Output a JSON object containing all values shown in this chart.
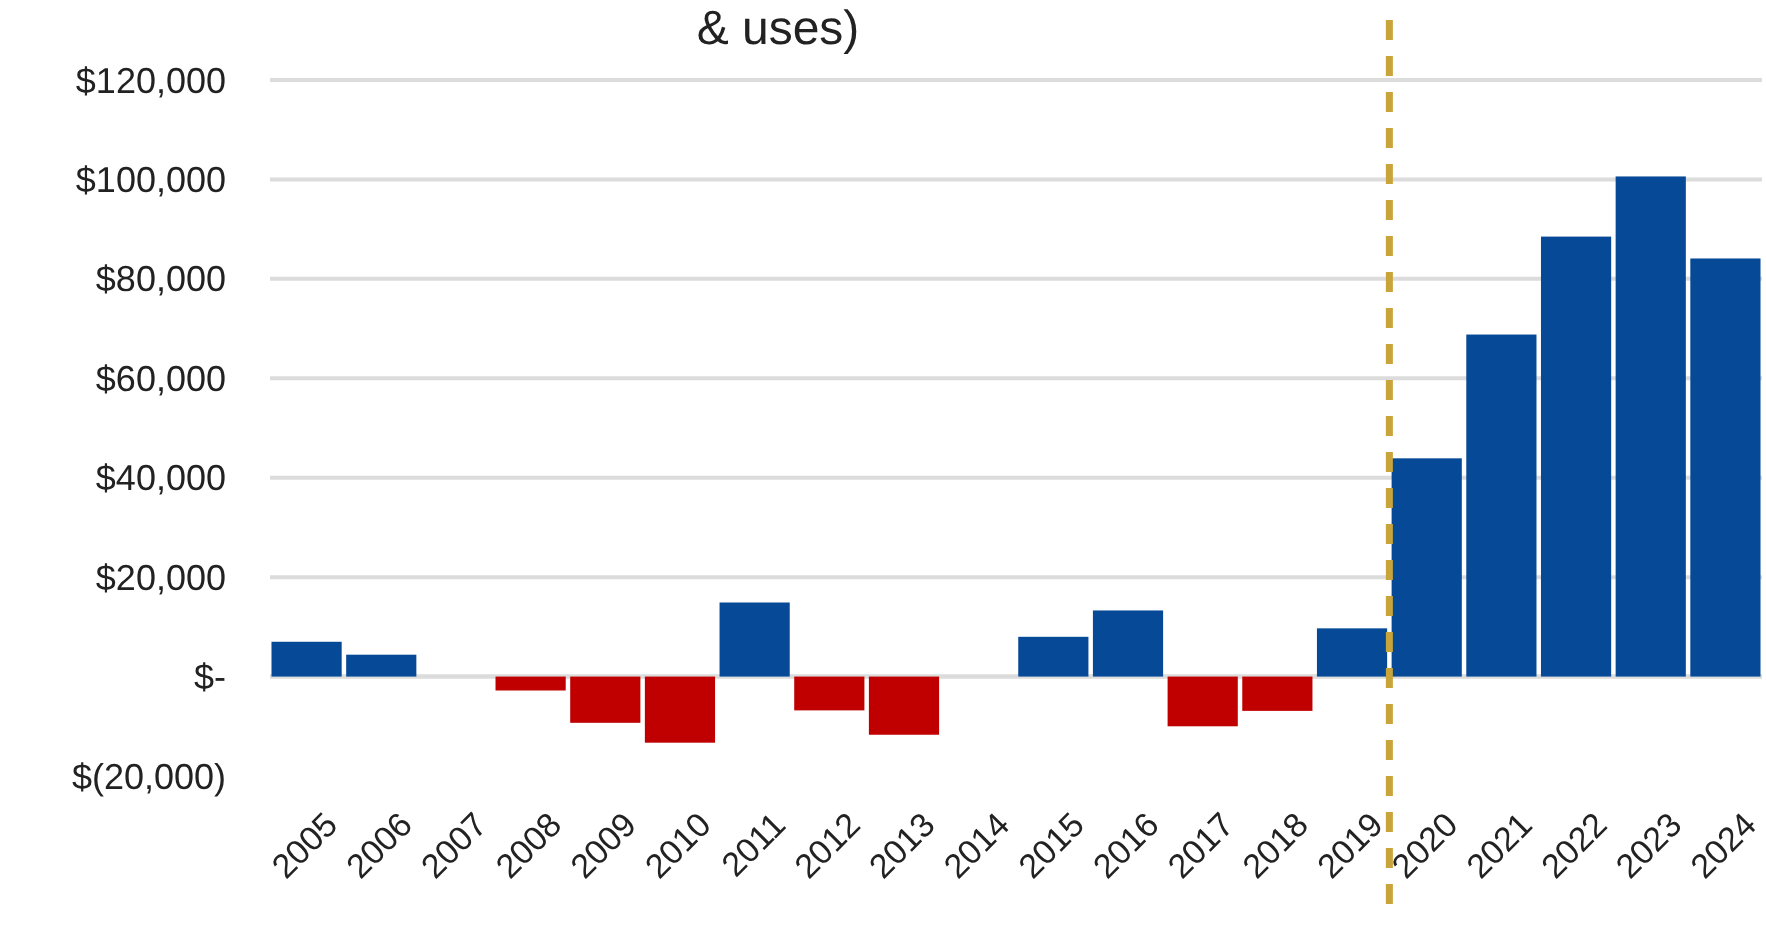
{
  "chart_data": {
    "type": "bar",
    "title": "& uses)",
    "categories": [
      "2005",
      "2006",
      "2007",
      "2008",
      "2009",
      "2010",
      "2011",
      "2012",
      "2013",
      "2014",
      "2015",
      "2016",
      "2017",
      "2018",
      "2019",
      "2020",
      "2021",
      "2022",
      "2023",
      "2024"
    ],
    "values": [
      7000,
      4400,
      0,
      -2800,
      -9300,
      -13300,
      14900,
      -6800,
      -11700,
      0,
      8000,
      13300,
      -10000,
      -6900,
      9700,
      43900,
      68800,
      88500,
      100600,
      84100
    ],
    "colors": [
      "#064a97",
      "#064a97",
      "#064a97",
      "#c00000",
      "#c00000",
      "#c00000",
      "#064a97",
      "#c00000",
      "#c00000",
      "#064a97",
      "#064a97",
      "#064a97",
      "#c00000",
      "#c00000",
      "#064a97",
      "#064a97",
      "#064a97",
      "#064a97",
      "#064a97",
      "#064a97"
    ],
    "ylim": [
      -20000,
      120000
    ],
    "yticks": [
      {
        "value": -20000,
        "label": "$(20,000)"
      },
      {
        "value": 0,
        "label": "$-"
      },
      {
        "value": 20000,
        "label": "$20,000"
      },
      {
        "value": 40000,
        "label": "$40,000"
      },
      {
        "value": 60000,
        "label": "$60,000"
      },
      {
        "value": 80000,
        "label": "$80,000"
      },
      {
        "value": 100000,
        "label": "$100,000"
      },
      {
        "value": 120000,
        "label": "$120,000"
      }
    ],
    "grid": "y",
    "ref_lines": [
      {
        "axis": "x",
        "value": "2020",
        "color": "#c9a43a",
        "line_style": "dashed"
      }
    ]
  }
}
